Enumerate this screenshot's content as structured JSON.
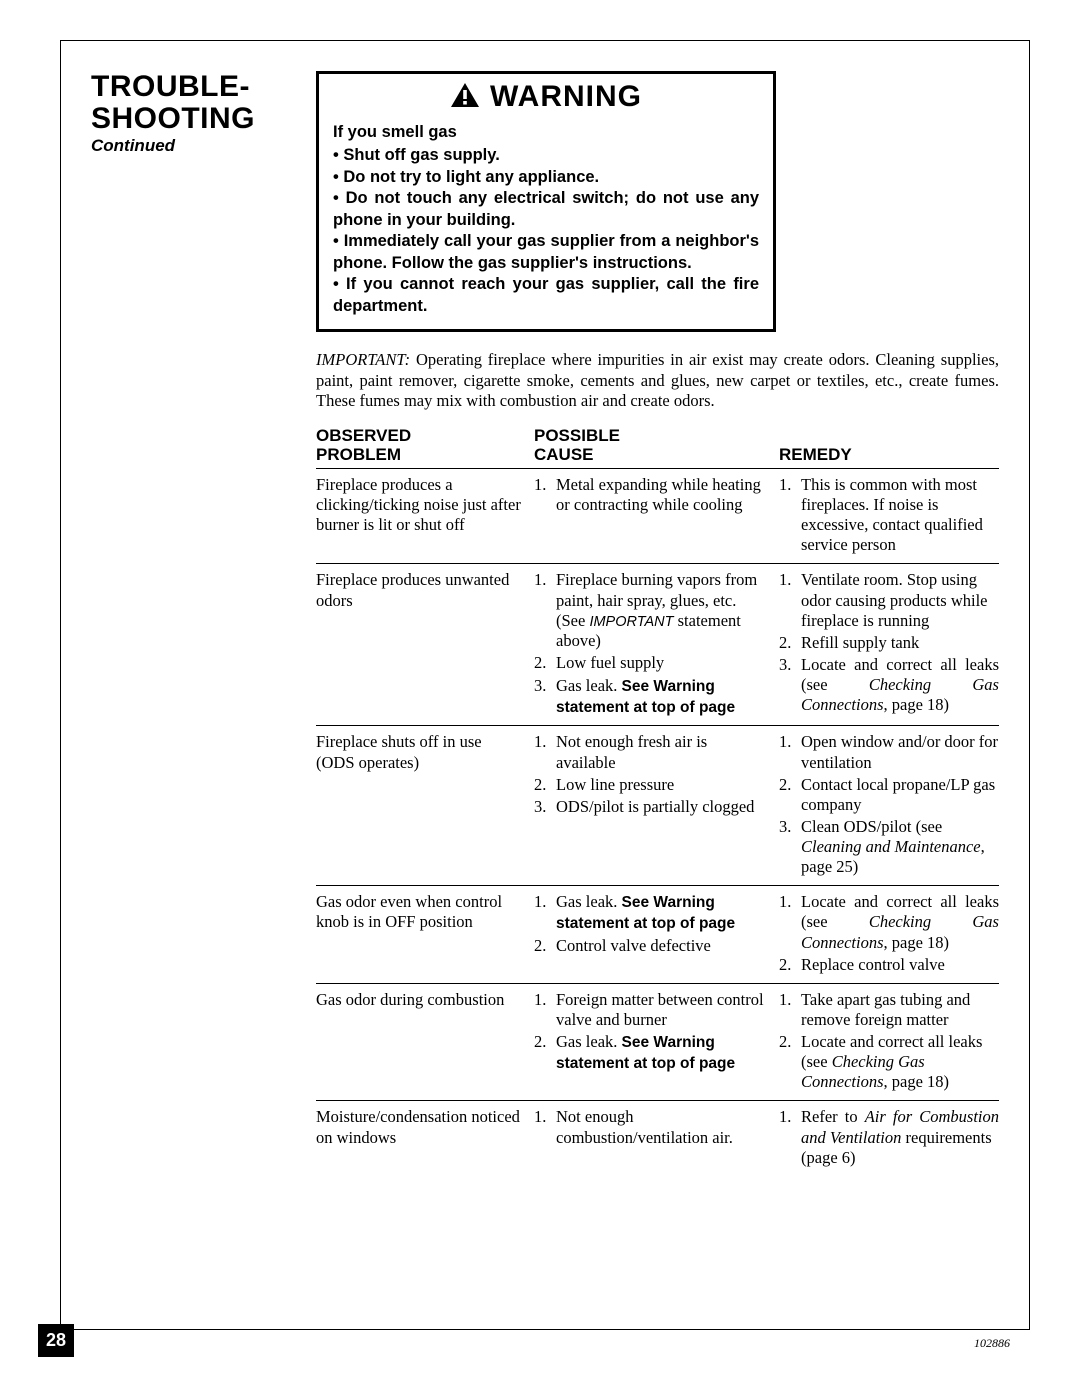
{
  "title_line1": "TROUBLE-",
  "title_line2": "SHOOTING",
  "continued": "Continued",
  "warning_word": "WARNING",
  "warning_lead": "If you smell gas",
  "warning_bullets": [
    "• Shut off gas supply.",
    "• Do not try to light any appliance.",
    "• Do not touch any electrical switch; do not use any phone in your building.",
    "• Immediately call your gas supplier from a neighbor's phone. Follow the gas supplier's instructions.",
    "• If you cannot reach your gas supplier, call the fire department."
  ],
  "important_label": "IMPORTANT:",
  "important_text": " Operating fireplace where impurities in air exist may create odors. Cleaning supplies, paint, paint remover, cigarette smoke, cements and glues, new carpet or textiles, etc., create fumes. These fumes may mix with combustion air and create odors.",
  "headers": {
    "col1a": "OBSERVED",
    "col1b": "PROBLEM",
    "col2a": "POSSIBLE",
    "col2b": "CAUSE",
    "col3": "REMEDY"
  },
  "rows": [
    {
      "problem": "Fireplace produces a clicking/ticking noise just after burner is lit or shut off",
      "causes": [
        {
          "text": "Metal expanding while heating or contracting while cooling"
        }
      ],
      "remedies": [
        {
          "text": "This is common with most fireplaces. If noise is excessive, contact qualified service person"
        }
      ]
    },
    {
      "problem": "Fireplace produces unwanted odors",
      "causes": [
        {
          "html": "Fireplace burning vapors from paint, hair spray, glues, etc. (See <span class='sc'>IMPORTANT</span> statement above)"
        },
        {
          "text": "Low fuel supply"
        },
        {
          "html": "Gas leak. <span class='bold'>See Warning statement at top of page</span>"
        }
      ],
      "remedies": [
        {
          "text": "Ventilate room. Stop using odor causing products while fireplace is running"
        },
        {
          "text": "Refill supply tank"
        },
        {
          "html": "Locate and correct all leaks (see <span class='ital'>Checking Gas Connections</span>, page 18)",
          "justify": true
        }
      ]
    },
    {
      "problem": "Fireplace shuts off in use (ODS operates)",
      "causes": [
        {
          "text": "Not enough fresh air is available"
        },
        {
          "text": "Low line pressure"
        },
        {
          "text": "ODS/pilot is partially clogged"
        }
      ],
      "remedies": [
        {
          "text": "Open window and/or door for ventilation"
        },
        {
          "text": "Contact local propane/LP gas company"
        },
        {
          "html": "Clean ODS/pilot (see <span class='ital'>Cleaning and Maintenance</span>, page 25)"
        }
      ]
    },
    {
      "problem": "Gas odor even when control knob is in OFF position",
      "causes": [
        {
          "html": "Gas leak. <span class='bold'>See Warning statement at top of page</span>"
        },
        {
          "text": "Control valve defective"
        }
      ],
      "remedies": [
        {
          "html": "Locate and correct all leaks (see <span class='ital'>Checking Gas Connections</span>, page 18)",
          "justify": true
        },
        {
          "text": "Replace control valve"
        }
      ]
    },
    {
      "problem": "Gas odor during combustion",
      "causes": [
        {
          "text": "Foreign matter between control valve and burner"
        },
        {
          "html": "Gas leak. <span class='bold'>See Warning statement at top of page</span>"
        }
      ],
      "remedies": [
        {
          "text": "Take apart gas tubing and remove foreign matter"
        },
        {
          "html": "Locate and correct all leaks (see <span class='ital'>Checking Gas Connections</span>, page 18)"
        }
      ]
    },
    {
      "problem": "Moisture/condensation noticed on windows",
      "causes": [
        {
          "text": "Not enough combustion/ventilation air."
        }
      ],
      "remedies": [
        {
          "html": "Refer to <span class='ital'>Air for Combustion and Ventilation</span> requirements<br>(page 6)",
          "justify": true
        }
      ]
    }
  ],
  "page_number": "28",
  "doc_number": "102886"
}
